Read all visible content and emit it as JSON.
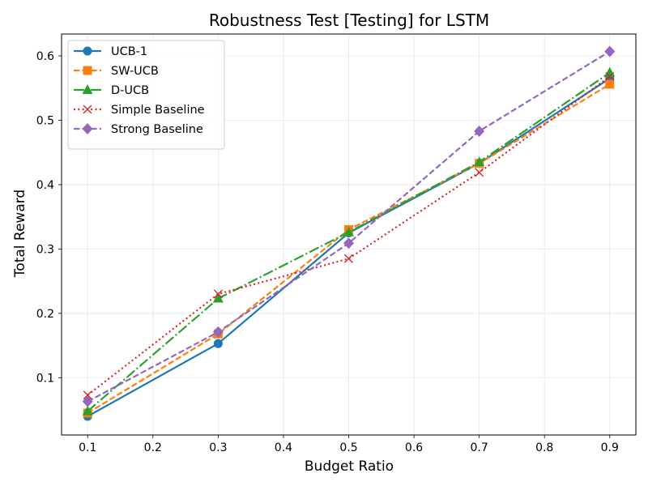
{
  "chart_data": {
    "type": "line",
    "title": "Robustness Test [Testing] for LSTM",
    "xlabel": "Budget Ratio",
    "ylabel": "Total Reward",
    "x": [
      0.1,
      0.3,
      0.5,
      0.7,
      0.9
    ],
    "xlim": [
      0.06,
      0.94
    ],
    "ylim": [
      0.011,
      0.634
    ],
    "xticks": [
      "0.1",
      "0.2",
      "0.3",
      "0.4",
      "0.5",
      "0.6",
      "0.7",
      "0.8",
      "0.9"
    ],
    "yticks": [
      "0.1",
      "0.2",
      "0.3",
      "0.4",
      "0.5",
      "0.6"
    ],
    "grid": true,
    "legend_position": "top-left",
    "series": [
      {
        "name": "UCB-1",
        "values": [
          0.04,
          0.153,
          0.325,
          0.433,
          0.565
        ],
        "color": "#1f77b4",
        "linestyle": "solid",
        "marker": "circle"
      },
      {
        "name": "SW-UCB",
        "values": [
          0.045,
          0.168,
          0.33,
          0.433,
          0.556
        ],
        "color": "#ff7f0e",
        "linestyle": "dashed",
        "marker": "square"
      },
      {
        "name": "D-UCB",
        "values": [
          0.048,
          0.223,
          0.326,
          0.435,
          0.574
        ],
        "color": "#2ca02c",
        "linestyle": "dashdot",
        "marker": "triangle"
      },
      {
        "name": "Simple Baseline",
        "values": [
          0.073,
          0.23,
          0.285,
          0.419,
          0.568
        ],
        "color": "#d62728",
        "linestyle": "dotted",
        "marker": "x"
      },
      {
        "name": "Strong Baseline",
        "values": [
          0.063,
          0.171,
          0.309,
          0.483,
          0.607
        ],
        "color": "#9467bd",
        "linestyle": "dashed",
        "marker": "diamond"
      }
    ]
  }
}
